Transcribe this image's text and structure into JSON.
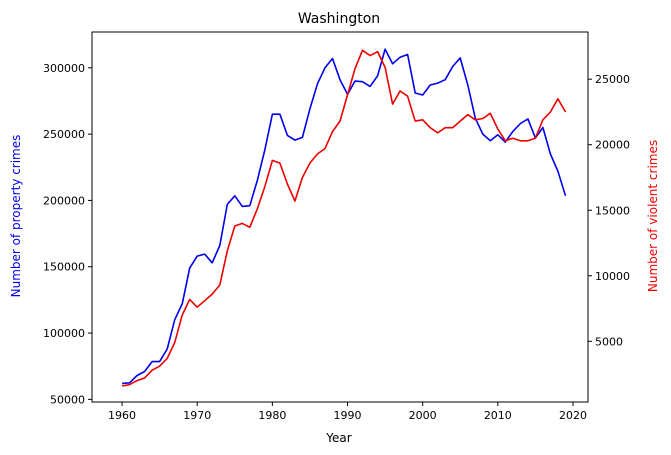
{
  "chart_data": {
    "type": "line",
    "title": "Washington",
    "xlabel": "Year",
    "ylabel_left": "Number of property crimes",
    "ylabel_right": "Number of violent crimes",
    "xlim": [
      1956,
      2022
    ],
    "ylim_left": [
      48000,
      327000
    ],
    "ylim_right": [
      370,
      28600
    ],
    "x_ticks": [
      1960,
      1970,
      1980,
      1990,
      2000,
      2010,
      2020
    ],
    "y_ticks_left": [
      50000,
      100000,
      150000,
      200000,
      250000,
      300000
    ],
    "y_ticks_right": [
      5000,
      10000,
      15000,
      20000,
      25000
    ],
    "grid": false,
    "colors": {
      "property": "#0000ee",
      "violent": "#ee0000",
      "axis": "#000000"
    },
    "x": [
      1960,
      1961,
      1962,
      1963,
      1964,
      1965,
      1966,
      1967,
      1968,
      1969,
      1970,
      1971,
      1972,
      1973,
      1974,
      1975,
      1976,
      1977,
      1978,
      1979,
      1980,
      1981,
      1982,
      1983,
      1984,
      1985,
      1986,
      1987,
      1988,
      1989,
      1990,
      1991,
      1992,
      1993,
      1994,
      1995,
      1996,
      1997,
      1998,
      1999,
      2000,
      2001,
      2002,
      2003,
      2004,
      2005,
      2006,
      2007,
      2008,
      2009,
      2010,
      2011,
      2012,
      2013,
      2014,
      2015,
      2016,
      2017,
      2018,
      2019
    ],
    "series": [
      {
        "axis": "left",
        "color": "#0000ee",
        "values": [
          62000,
          62500,
          68000,
          71000,
          78500,
          78500,
          88000,
          110000,
          122000,
          149000,
          158000,
          159500,
          153000,
          166000,
          197000,
          203500,
          195500,
          196000,
          215000,
          238000,
          265000,
          265000,
          249000,
          245500,
          247500,
          269000,
          288000,
          300000,
          307000,
          291000,
          280000,
          290000,
          289500,
          286000,
          294000,
          314000,
          303000,
          308000,
          310000,
          281000,
          279500,
          287000,
          288500,
          291000,
          301000,
          307500,
          287000,
          262000,
          250000,
          245000,
          249500,
          244000,
          252000,
          258000,
          261500,
          247000,
          255000,
          235000,
          222000,
          203500
        ]
      },
      {
        "axis": "right",
        "color": "#ee0000",
        "values": [
          1600,
          1700,
          2000,
          2200,
          2800,
          3100,
          3700,
          4900,
          7000,
          8200,
          7600,
          8100,
          8600,
          9300,
          11900,
          13800,
          14000,
          13700,
          15100,
          16800,
          18800,
          18600,
          17000,
          15700,
          17500,
          18600,
          19300,
          19700,
          21000,
          21800,
          23800,
          25800,
          27200,
          26800,
          27100,
          25900,
          23100,
          24100,
          23700,
          21800,
          21900,
          21300,
          20900,
          21300,
          21300,
          21800,
          22300,
          21900,
          22000,
          22400,
          21200,
          20300,
          20500,
          20300,
          20300,
          20500,
          21900,
          22500,
          23500,
          22500
        ]
      }
    ]
  }
}
